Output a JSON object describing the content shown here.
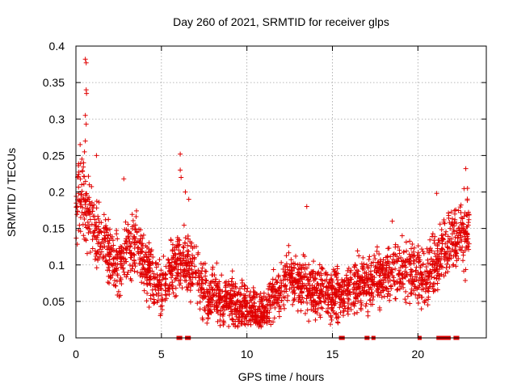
{
  "chart_data": {
    "type": "scatter",
    "title": "Day 260 of 2021, SRMTID for receiver glps",
    "xlabel": "GPS time / hours",
    "ylabel": "SRMTID / TECUs",
    "xlim": [
      0,
      24
    ],
    "ylim": [
      0,
      0.4
    ],
    "x_ticks": [
      0,
      5,
      10,
      15,
      20
    ],
    "y_ticks": [
      0,
      0.05,
      0.1,
      0.15,
      0.2,
      0.25,
      0.3,
      0.35,
      0.4
    ],
    "x_tick_labels": [
      "0",
      "5",
      "10",
      "15",
      "20"
    ],
    "y_tick_labels": [
      "0",
      "0.05",
      "0.1",
      "0.15",
      "0.2",
      "0.25",
      "0.3",
      "0.35",
      "0.4"
    ],
    "grid": true,
    "marker": "+",
    "color": "#e00000",
    "series": [
      {
        "name": "SRMTID",
        "trend": {
          "x": [
            0,
            0.25,
            0.5,
            0.75,
            1.0,
            1.5,
            2.0,
            2.5,
            3.0,
            3.5,
            4.0,
            4.5,
            5.0,
            5.5,
            6.0,
            6.5,
            7.0,
            7.5,
            8.0,
            8.5,
            9.0,
            9.5,
            10.0,
            10.5,
            11.0,
            11.5,
            12.0,
            12.5,
            13.0,
            13.5,
            14.0,
            14.5,
            15.0,
            15.5,
            16.0,
            16.5,
            17.0,
            17.5,
            18.0,
            18.5,
            19.0,
            19.5,
            20.0,
            20.5,
            21.0,
            21.5,
            22.0,
            22.5,
            23.0
          ],
          "y": [
            0.19,
            0.2,
            0.19,
            0.17,
            0.15,
            0.13,
            0.11,
            0.1,
            0.12,
            0.13,
            0.1,
            0.08,
            0.07,
            0.09,
            0.11,
            0.1,
            0.08,
            0.065,
            0.06,
            0.055,
            0.05,
            0.045,
            0.04,
            0.035,
            0.035,
            0.06,
            0.07,
            0.08,
            0.075,
            0.07,
            0.065,
            0.06,
            0.06,
            0.06,
            0.065,
            0.07,
            0.075,
            0.08,
            0.085,
            0.09,
            0.09,
            0.09,
            0.085,
            0.08,
            0.1,
            0.12,
            0.13,
            0.14,
            0.15
          ]
        },
        "spread": 0.045,
        "outliers": [
          {
            "x": 0.55,
            "y": 0.382
          },
          {
            "x": 0.6,
            "y": 0.377
          },
          {
            "x": 0.6,
            "y": 0.34
          },
          {
            "x": 0.62,
            "y": 0.335
          },
          {
            "x": 0.55,
            "y": 0.305
          },
          {
            "x": 0.6,
            "y": 0.293
          },
          {
            "x": 0.55,
            "y": 0.27
          },
          {
            "x": 0.5,
            "y": 0.255
          },
          {
            "x": 0.35,
            "y": 0.245
          },
          {
            "x": 0.45,
            "y": 0.24
          },
          {
            "x": 1.2,
            "y": 0.25
          },
          {
            "x": 6.1,
            "y": 0.252
          },
          {
            "x": 6.1,
            "y": 0.23
          },
          {
            "x": 6.15,
            "y": 0.22
          },
          {
            "x": 6.4,
            "y": 0.2
          },
          {
            "x": 6.6,
            "y": 0.19
          },
          {
            "x": 2.8,
            "y": 0.218
          },
          {
            "x": 13.5,
            "y": 0.18
          },
          {
            "x": 18.5,
            "y": 0.16
          },
          {
            "x": 21.1,
            "y": 0.198
          },
          {
            "x": 22.8,
            "y": 0.232
          },
          {
            "x": 22.9,
            "y": 0.205
          }
        ],
        "zero_markers_x": [
          6.0,
          6.05,
          6.1,
          6.5,
          6.6,
          15.5,
          15.6,
          17.0,
          17.05,
          17.4,
          20.1,
          21.2,
          21.3,
          21.4,
          21.5,
          21.6,
          21.7,
          21.8,
          22.2,
          22.3
        ]
      }
    ]
  }
}
